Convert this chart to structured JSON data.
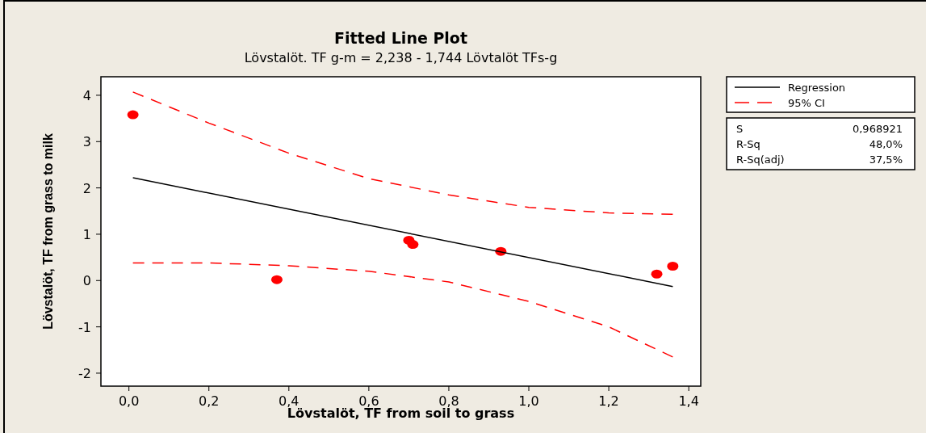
{
  "chart_data": {
    "type": "scatter",
    "title": "Fitted Line Plot",
    "subtitle": "Lövstalöt. TF g-m =  2,238 - 1,744 Lövtalöt TFs-g",
    "xlabel": "Lövstalöt, TF from soil to  grass",
    "ylabel": "Lövstalöt,  TF from grass to milk",
    "xlim": [
      -0.07,
      1.43
    ],
    "ylim": [
      -2.28,
      4.4
    ],
    "xticks": [
      {
        "value": 0,
        "label": "0,0"
      },
      {
        "value": 0.2,
        "label": "0,2"
      },
      {
        "value": 0.4,
        "label": "0,4"
      },
      {
        "value": 0.6,
        "label": "0,6"
      },
      {
        "value": 0.8,
        "label": "0,8"
      },
      {
        "value": 1,
        "label": "1,0"
      },
      {
        "value": 1.2,
        "label": "1,2"
      },
      {
        "value": 1.4,
        "label": "1,4"
      }
    ],
    "yticks": [
      -2,
      -1,
      0,
      1,
      2,
      3,
      4
    ],
    "grid": false,
    "legend": "right",
    "series": [
      {
        "color": "#ff0000",
        "marker": "circle",
        "x": [
          0.01,
          0.37,
          0.7,
          0.71,
          0.93,
          1.32,
          1.36
        ],
        "values": [
          3.58,
          0.02,
          0.87,
          0.78,
          0.63,
          0.14,
          0.31
        ]
      },
      {
        "type": "line",
        "name": "Regression",
        "color": "#000000",
        "line_style": "solid",
        "x": [
          0.01,
          1.36
        ],
        "values": [
          2.22,
          -0.13
        ]
      },
      {
        "type": "line",
        "name": "95% CI",
        "color": "#ff0000",
        "line_style": "dashed",
        "x": [
          0.01,
          0.2,
          0.4,
          0.6,
          0.8,
          1.0,
          1.2,
          1.36
        ],
        "values": [
          4.07,
          3.4,
          2.75,
          2.2,
          1.85,
          1.58,
          1.46,
          1.43
        ]
      },
      {
        "type": "line",
        "color": "#ff0000",
        "line_style": "dashed",
        "x": [
          0.01,
          0.2,
          0.4,
          0.6,
          0.8,
          1.0,
          1.2,
          1.36
        ],
        "values": [
          0.38,
          0.38,
          0.32,
          0.2,
          -0.03,
          -0.45,
          -1.0,
          -1.65
        ]
      }
    ],
    "annotations": [
      "S 0,968921",
      "R-Sq 48,0%",
      "R-Sq(adj) 37,5%"
    ]
  }
}
